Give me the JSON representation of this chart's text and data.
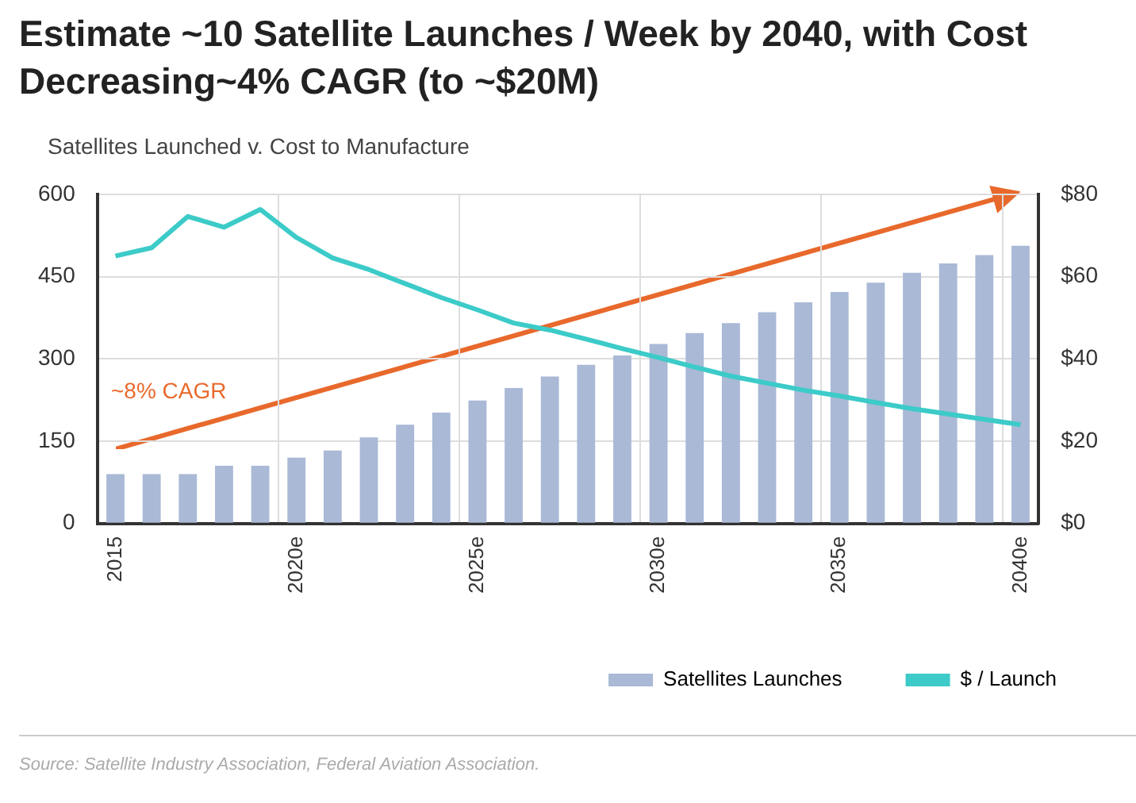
{
  "chart_data": {
    "type": "bar",
    "title": "Estimate ~10 Satellite Launches / Week by 2040, with Cost Decreasing~4% CAGR (to ~$20M)",
    "subtitle": "Satellites Launched v. Cost to Manufacture",
    "categories": [
      "2015",
      null,
      null,
      null,
      null,
      "2020e",
      null,
      null,
      null,
      null,
      "2025e",
      null,
      null,
      null,
      null,
      "2030e",
      null,
      null,
      null,
      null,
      "2035e",
      null,
      null,
      null,
      null,
      "2040e"
    ],
    "series": [
      {
        "name": "Satellites Launches",
        "color": "#a9b9d6",
        "values": [
          90,
          90,
          90,
          105,
          105,
          120,
          133,
          157,
          180,
          202,
          224,
          247,
          268,
          289,
          306,
          327,
          347,
          365,
          385,
          403,
          422,
          439,
          457,
          474,
          489,
          506
        ]
      },
      {
        "name": "$ / Launch",
        "type": "line",
        "axis": "y2",
        "color": "#3ccbc8",
        "values": [
          65,
          67,
          74.6,
          72,
          76.3,
          69.5,
          64.5,
          61.7,
          58.3,
          54.9,
          51.9,
          48.7,
          47,
          44.8,
          42.5,
          40.3,
          38,
          35.8,
          34.1,
          32.4,
          31,
          29.4,
          27.9,
          26.6,
          25.3,
          24
        ]
      }
    ],
    "ylim": [
      0,
      600
    ],
    "yticks": [
      0,
      150,
      300,
      450,
      600
    ],
    "y2lim": [
      0,
      80
    ],
    "y2ticks": [
      {
        "value": 0,
        "label": "$0"
      },
      {
        "value": 20,
        "label": "$20"
      },
      {
        "value": 40,
        "label": "$40"
      },
      {
        "value": 60,
        "label": "$60"
      },
      {
        "value": 80,
        "label": "$80"
      }
    ],
    "annotations": [
      "~8% CAGR",
      "Source: Satellite Industry Association, Federal Aviation Association."
    ],
    "grid": true,
    "legend": "bottom right",
    "marker": "none",
    "line_style": "solid"
  }
}
